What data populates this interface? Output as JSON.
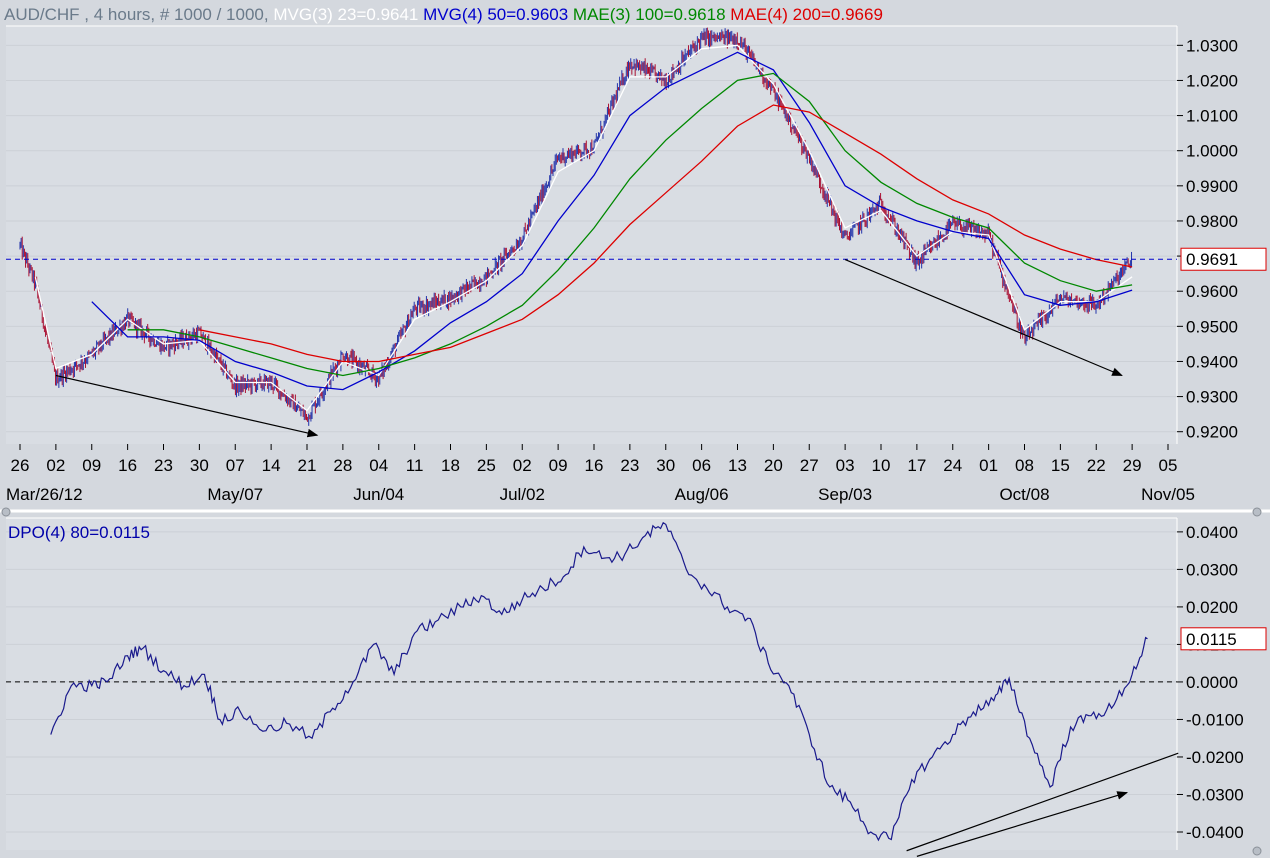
{
  "header": {
    "symbol": "AUD/CHF",
    "info": " , 4 hours, # 1000 / 1000,",
    "studies": [
      {
        "label": "MVG(3) 23=0.9641",
        "color": "#ffffff"
      },
      {
        "label": "MVG(4) 50=0.9603",
        "color": "#0000cc"
      },
      {
        "label": "MAE(3) 100=0.9618",
        "color": "#008800"
      },
      {
        "label": "MAE(4) 200=0.9669",
        "color": "#dd0000"
      }
    ]
  },
  "colors": {
    "panel_bg": "#d9dde3",
    "frame": "#ffffff",
    "bull_candle": "#2233aa",
    "bear_candle": "#aa1133",
    "dpo_line": "#1a1a8c",
    "reference_line": "#0000cc",
    "marker_box": "#dd0000"
  },
  "x_axis": {
    "day_labels": [
      "26",
      "02",
      "09",
      "16",
      "23",
      "30",
      "07",
      "14",
      "21",
      "28",
      "04",
      "11",
      "18",
      "25",
      "02",
      "09",
      "16",
      "23",
      "30",
      "06",
      "13",
      "20",
      "27",
      "03",
      "10",
      "17",
      "24",
      "01",
      "08",
      "15",
      "22",
      "29",
      "05"
    ],
    "month_labels": [
      "Mar/26/12",
      "May/07",
      "Jun/04",
      "Jul/02",
      "Aug/06",
      "Sep/03",
      "Oct/08",
      "Nov/05"
    ]
  },
  "chart_data": [
    {
      "type": "candlestick",
      "title": "AUD/CHF , 4 hours, # 1000 / 1000",
      "x_range": [
        "2012-03-26",
        "2012-11-05"
      ],
      "ylim": [
        0.9165,
        1.0355
      ],
      "y_ticks": [
        "1.0300",
        "1.0200",
        "1.0100",
        "1.0000",
        "0.9900",
        "0.9800",
        "0.9700",
        "0.9600",
        "0.9500",
        "0.9400",
        "0.9300",
        "0.9200"
      ],
      "last_value": "0.9691",
      "reference_line": 0.9691,
      "price_path": [
        [
          "2012-03-26",
          0.973
        ],
        [
          "2012-03-29",
          0.962
        ],
        [
          "2012-04-02",
          0.935
        ],
        [
          "2012-04-09",
          0.942
        ],
        [
          "2012-04-16",
          0.952
        ],
        [
          "2012-04-23",
          0.944
        ],
        [
          "2012-04-30",
          0.948
        ],
        [
          "2012-05-07",
          0.933
        ],
        [
          "2012-05-14",
          0.934
        ],
        [
          "2012-05-21",
          0.924
        ],
        [
          "2012-05-28",
          0.942
        ],
        [
          "2012-06-04",
          0.935
        ],
        [
          "2012-06-11",
          0.955
        ],
        [
          "2012-06-18",
          0.958
        ],
        [
          "2012-06-25",
          0.964
        ],
        [
          "2012-07-02",
          0.975
        ],
        [
          "2012-07-09",
          0.998
        ],
        [
          "2012-07-16",
          1.001
        ],
        [
          "2012-07-23",
          1.025
        ],
        [
          "2012-07-30",
          1.02
        ],
        [
          "2012-08-06",
          1.032
        ],
        [
          "2012-08-13",
          1.032
        ],
        [
          "2012-08-20",
          1.017
        ],
        [
          "2012-08-27",
          0.998
        ],
        [
          "2012-09-03",
          0.975
        ],
        [
          "2012-09-10",
          0.985
        ],
        [
          "2012-09-17",
          0.968
        ],
        [
          "2012-09-24",
          0.979
        ],
        [
          "2012-10-01",
          0.976
        ],
        [
          "2012-10-08",
          0.946
        ],
        [
          "2012-10-15",
          0.958
        ],
        [
          "2012-10-22",
          0.956
        ],
        [
          "2012-10-29",
          0.9691
        ]
      ],
      "series": [
        {
          "name": "MVG(3) 23",
          "color": "#ffffff",
          "last": 0.9641,
          "values": [
            [
              "2012-03-29",
              0.964
            ],
            [
              "2012-04-02",
              0.938
            ],
            [
              "2012-04-09",
              0.942
            ],
            [
              "2012-04-16",
              0.952
            ],
            [
              "2012-04-23",
              0.945
            ],
            [
              "2012-04-30",
              0.946
            ],
            [
              "2012-05-07",
              0.934
            ],
            [
              "2012-05-14",
              0.934
            ],
            [
              "2012-05-21",
              0.926
            ],
            [
              "2012-05-28",
              0.94
            ],
            [
              "2012-06-04",
              0.936
            ],
            [
              "2012-06-11",
              0.952
            ],
            [
              "2012-06-18",
              0.957
            ],
            [
              "2012-06-25",
              0.963
            ],
            [
              "2012-07-02",
              0.973
            ],
            [
              "2012-07-09",
              0.994
            ],
            [
              "2012-07-16",
              1.0
            ],
            [
              "2012-07-23",
              1.021
            ],
            [
              "2012-07-30",
              1.021
            ],
            [
              "2012-08-06",
              1.029
            ],
            [
              "2012-08-13",
              1.03
            ],
            [
              "2012-08-20",
              1.019
            ],
            [
              "2012-08-27",
              1.0
            ],
            [
              "2012-09-03",
              0.978
            ],
            [
              "2012-09-10",
              0.983
            ],
            [
              "2012-09-17",
              0.97
            ],
            [
              "2012-09-24",
              0.977
            ],
            [
              "2012-10-01",
              0.976
            ],
            [
              "2012-10-08",
              0.949
            ],
            [
              "2012-10-15",
              0.957
            ],
            [
              "2012-10-22",
              0.957
            ],
            [
              "2012-10-29",
              0.9641
            ]
          ]
        },
        {
          "name": "MVG(4) 50",
          "color": "#0000cc",
          "last": 0.9603,
          "values": [
            [
              "2012-04-09",
              0.957
            ],
            [
              "2012-04-16",
              0.947
            ],
            [
              "2012-04-23",
              0.947
            ],
            [
              "2012-04-30",
              0.946
            ],
            [
              "2012-05-07",
              0.94
            ],
            [
              "2012-05-14",
              0.937
            ],
            [
              "2012-05-21",
              0.933
            ],
            [
              "2012-05-28",
              0.932
            ],
            [
              "2012-06-04",
              0.937
            ],
            [
              "2012-06-11",
              0.943
            ],
            [
              "2012-06-18",
              0.951
            ],
            [
              "2012-06-25",
              0.957
            ],
            [
              "2012-07-02",
              0.965
            ],
            [
              "2012-07-09",
              0.98
            ],
            [
              "2012-07-16",
              0.993
            ],
            [
              "2012-07-23",
              1.01
            ],
            [
              "2012-07-30",
              1.018
            ],
            [
              "2012-08-06",
              1.023
            ],
            [
              "2012-08-13",
              1.028
            ],
            [
              "2012-08-20",
              1.023
            ],
            [
              "2012-08-27",
              1.008
            ],
            [
              "2012-09-03",
              0.99
            ],
            [
              "2012-09-10",
              0.984
            ],
            [
              "2012-09-17",
              0.98
            ],
            [
              "2012-09-24",
              0.977
            ],
            [
              "2012-10-01",
              0.975
            ],
            [
              "2012-10-08",
              0.959
            ],
            [
              "2012-10-15",
              0.956
            ],
            [
              "2012-10-22",
              0.957
            ],
            [
              "2012-10-29",
              0.9603
            ]
          ]
        },
        {
          "name": "MAE(3) 100",
          "color": "#008800",
          "last": 0.9618,
          "values": [
            [
              "2012-04-16",
              0.949
            ],
            [
              "2012-04-23",
              0.949
            ],
            [
              "2012-04-30",
              0.947
            ],
            [
              "2012-05-07",
              0.944
            ],
            [
              "2012-05-14",
              0.941
            ],
            [
              "2012-05-21",
              0.938
            ],
            [
              "2012-05-28",
              0.936
            ],
            [
              "2012-06-04",
              0.938
            ],
            [
              "2012-06-11",
              0.941
            ],
            [
              "2012-06-18",
              0.945
            ],
            [
              "2012-06-25",
              0.95
            ],
            [
              "2012-07-02",
              0.956
            ],
            [
              "2012-07-09",
              0.966
            ],
            [
              "2012-07-16",
              0.978
            ],
            [
              "2012-07-23",
              0.992
            ],
            [
              "2012-07-30",
              1.003
            ],
            [
              "2012-08-06",
              1.012
            ],
            [
              "2012-08-13",
              1.02
            ],
            [
              "2012-08-20",
              1.022
            ],
            [
              "2012-08-27",
              1.014
            ],
            [
              "2012-09-03",
              1.0
            ],
            [
              "2012-09-10",
              0.991
            ],
            [
              "2012-09-17",
              0.985
            ],
            [
              "2012-09-24",
              0.981
            ],
            [
              "2012-10-01",
              0.978
            ],
            [
              "2012-10-08",
              0.968
            ],
            [
              "2012-10-15",
              0.963
            ],
            [
              "2012-10-22",
              0.96
            ],
            [
              "2012-10-29",
              0.9618
            ]
          ]
        },
        {
          "name": "MAE(4) 200",
          "color": "#dd0000",
          "last": 0.9669,
          "values": [
            [
              "2012-04-30",
              0.949
            ],
            [
              "2012-05-07",
              0.947
            ],
            [
              "2012-05-14",
              0.945
            ],
            [
              "2012-05-21",
              0.942
            ],
            [
              "2012-05-28",
              0.94
            ],
            [
              "2012-06-04",
              0.94
            ],
            [
              "2012-06-11",
              0.942
            ],
            [
              "2012-06-18",
              0.944
            ],
            [
              "2012-06-25",
              0.948
            ],
            [
              "2012-07-02",
              0.952
            ],
            [
              "2012-07-09",
              0.959
            ],
            [
              "2012-07-16",
              0.968
            ],
            [
              "2012-07-23",
              0.979
            ],
            [
              "2012-07-30",
              0.988
            ],
            [
              "2012-08-06",
              0.997
            ],
            [
              "2012-08-13",
              1.007
            ],
            [
              "2012-08-20",
              1.013
            ],
            [
              "2012-08-27",
              1.011
            ],
            [
              "2012-09-03",
              1.005
            ],
            [
              "2012-09-10",
              0.999
            ],
            [
              "2012-09-17",
              0.992
            ],
            [
              "2012-09-24",
              0.986
            ],
            [
              "2012-10-01",
              0.982
            ],
            [
              "2012-10-08",
              0.976
            ],
            [
              "2012-10-15",
              0.972
            ],
            [
              "2012-10-22",
              0.969
            ],
            [
              "2012-10-29",
              0.9669
            ]
          ]
        }
      ],
      "trend_arrows": [
        {
          "from": [
            "2012-04-02",
            0.936
          ],
          "to": [
            "2012-05-23",
            0.919
          ]
        },
        {
          "from": [
            "2012-09-03",
            0.969
          ],
          "to": [
            "2012-10-27",
            0.936
          ]
        }
      ]
    },
    {
      "type": "line",
      "title": "DPO(4) 80=0.0115",
      "x_range": [
        "2012-03-26",
        "2012-11-05"
      ],
      "ylim": [
        -0.0448,
        0.0437
      ],
      "y_ticks": [
        "0.0400",
        "0.0300",
        "0.0200",
        "0.0100",
        "0.0000",
        "-0.0100",
        "-0.0200",
        "-0.0300",
        "-0.0400"
      ],
      "last_value": "0.0115",
      "reference_line": 0.0,
      "series": [
        {
          "name": "DPO(4) 80",
          "color": "#1a1a8c",
          "last": 0.0115,
          "values": [
            [
              "2012-04-01",
              -0.014
            ],
            [
              "2012-04-05",
              -0.001
            ],
            [
              "2012-04-09",
              -0.001
            ],
            [
              "2012-04-12",
              0.0
            ],
            [
              "2012-04-16",
              0.007
            ],
            [
              "2012-04-19",
              0.009
            ],
            [
              "2012-04-23",
              0.003
            ],
            [
              "2012-04-27",
              -0.001
            ],
            [
              "2012-05-01",
              0.002
            ],
            [
              "2012-05-04",
              -0.01
            ],
            [
              "2012-05-08",
              -0.008
            ],
            [
              "2012-05-13",
              -0.013
            ],
            [
              "2012-05-17",
              -0.011
            ],
            [
              "2012-05-22",
              -0.015
            ],
            [
              "2012-05-26",
              -0.007
            ],
            [
              "2012-05-30",
              0.0
            ],
            [
              "2012-06-03",
              0.01
            ],
            [
              "2012-06-07",
              0.002
            ],
            [
              "2012-06-11",
              0.013
            ],
            [
              "2012-06-15",
              0.016
            ],
            [
              "2012-06-20",
              0.02
            ],
            [
              "2012-06-24",
              0.023
            ],
            [
              "2012-06-28",
              0.018
            ],
            [
              "2012-07-02",
              0.022
            ],
            [
              "2012-07-06",
              0.025
            ],
            [
              "2012-07-10",
              0.028
            ],
            [
              "2012-07-14",
              0.036
            ],
            [
              "2012-07-18",
              0.033
            ],
            [
              "2012-07-22",
              0.034
            ],
            [
              "2012-07-26",
              0.039
            ],
            [
              "2012-07-30",
              0.042
            ],
            [
              "2012-08-03",
              0.03
            ],
            [
              "2012-08-07",
              0.025
            ],
            [
              "2012-08-11",
              0.02
            ],
            [
              "2012-08-15",
              0.017
            ],
            [
              "2012-08-19",
              0.005
            ],
            [
              "2012-08-23",
              -0.001
            ],
            [
              "2012-08-27",
              -0.014
            ],
            [
              "2012-08-31",
              -0.028
            ],
            [
              "2012-09-04",
              -0.032
            ],
            [
              "2012-09-08",
              -0.04
            ],
            [
              "2012-09-12",
              -0.042
            ],
            [
              "2012-09-16",
              -0.026
            ],
            [
              "2012-09-20",
              -0.02
            ],
            [
              "2012-09-24",
              -0.014
            ],
            [
              "2012-09-28",
              -0.008
            ],
            [
              "2012-10-02",
              -0.005
            ],
            [
              "2012-10-05",
              0.001
            ],
            [
              "2012-10-09",
              -0.015
            ],
            [
              "2012-10-13",
              -0.028
            ],
            [
              "2012-10-17",
              -0.012
            ],
            [
              "2012-10-21",
              -0.009
            ],
            [
              "2012-10-25",
              -0.007
            ],
            [
              "2012-10-29",
              0.002
            ],
            [
              "2012-11-01",
              0.0115
            ]
          ]
        }
      ],
      "trend_lines": [
        {
          "from": [
            "2012-09-15",
            -0.045
          ],
          "to": [
            "2012-11-07",
            -0.019
          ]
        },
        {
          "from": [
            "2012-09-17",
            -0.0465
          ],
          "to": [
            "2012-10-28",
            -0.0295
          ],
          "arrow": true
        }
      ]
    }
  ]
}
